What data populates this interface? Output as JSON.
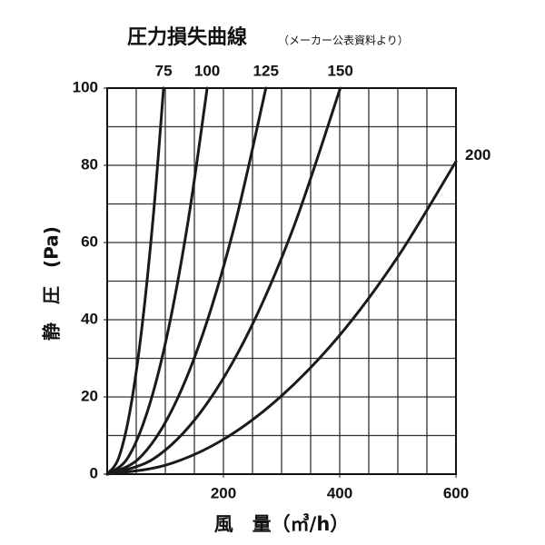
{
  "chart_data": {
    "type": "line",
    "title": "圧力損失曲線",
    "subtitle": "（メーカー公表資料より）",
    "x_label": "風　量（㎥/h）",
    "y_label": "静　圧　(Pa)",
    "xlim": [
      0,
      600
    ],
    "ylim": [
      0,
      100
    ],
    "xticks": [
      200,
      400,
      600
    ],
    "yticks": [
      0,
      20,
      40,
      60,
      80,
      100
    ],
    "xgrid": [
      50,
      100,
      150,
      200,
      250,
      300,
      350,
      400,
      450,
      500,
      550
    ],
    "ygrid": [
      10,
      20,
      30,
      40,
      50,
      60,
      70,
      80,
      90
    ],
    "series": [
      {
        "name": "75",
        "color": "#1a1a1a",
        "x": [
          0,
          20,
          40,
          60,
          80,
          97
        ],
        "values": [
          0,
          4.3,
          17,
          38.3,
          68,
          100
        ]
      },
      {
        "name": "100",
        "color": "#1a1a1a",
        "x": [
          0,
          35,
          70,
          105,
          140,
          172
        ],
        "values": [
          0,
          4.1,
          16.6,
          37.3,
          66.3,
          100
        ]
      },
      {
        "name": "125",
        "color": "#1a1a1a",
        "x": [
          0,
          55,
          110,
          165,
          220,
          273
        ],
        "values": [
          0,
          4.1,
          16.2,
          36.5,
          64.9,
          100
        ]
      },
      {
        "name": "150",
        "color": "#1a1a1a",
        "x": [
          0,
          80,
          160,
          240,
          320,
          401
        ],
        "values": [
          0,
          4,
          15.9,
          35.8,
          63.7,
          100
        ]
      },
      {
        "name": "200",
        "color": "#1a1a1a",
        "x": [
          0,
          100,
          200,
          300,
          400,
          500,
          600
        ],
        "values": [
          0,
          2.3,
          9,
          20.3,
          36,
          56.3,
          81
        ]
      }
    ]
  }
}
